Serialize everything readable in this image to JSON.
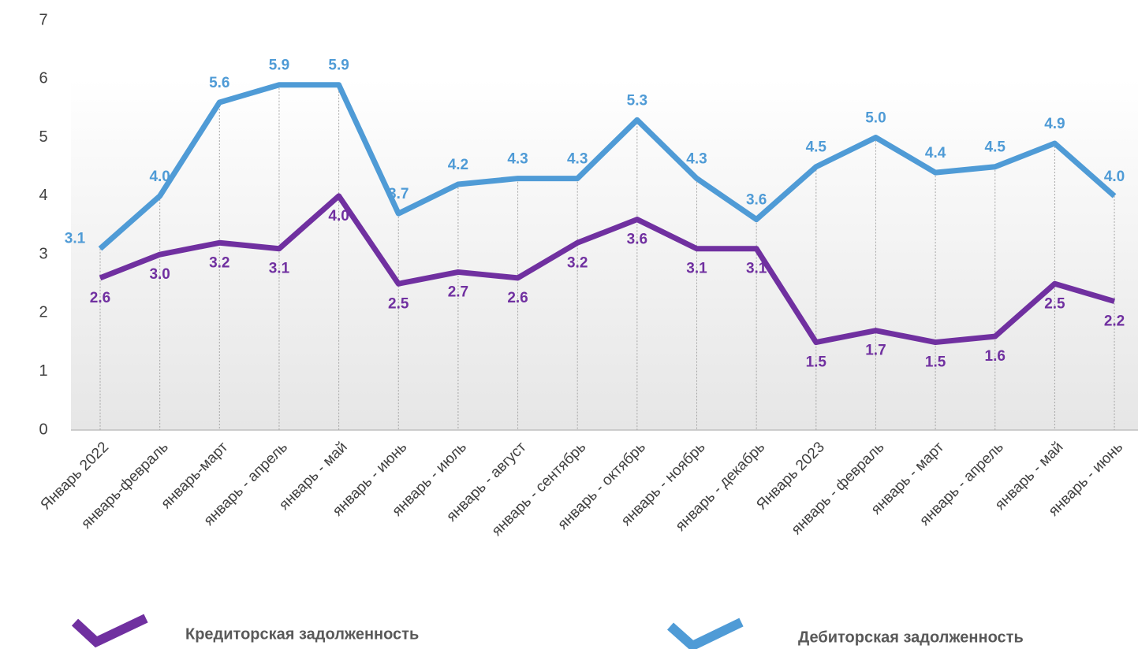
{
  "chart_data": {
    "type": "line",
    "categories": [
      "Январь 2022",
      "январь-февраль",
      "январь-март",
      "январь - апрель",
      "январь - май",
      "январь - июнь",
      "январь - июль",
      "январь - август",
      "январь - сентябрь",
      "январь - октябрь",
      "январь - ноябрь",
      "январь - декабрь",
      "Январь 2023",
      "январь - февраль",
      "январь - март",
      "январь - апрель",
      "январь - май",
      "январь - июнь"
    ],
    "series": [
      {
        "name": "Кредиторская задолженность",
        "color": "#7030a0",
        "values": [
          2.6,
          3.0,
          3.2,
          3.1,
          4.0,
          2.5,
          2.7,
          2.6,
          3.2,
          3.6,
          3.1,
          3.1,
          1.5,
          1.7,
          1.5,
          1.6,
          2.5,
          2.2
        ],
        "value_labels": [
          "2.6",
          "3.0",
          "3.2",
          "3.1",
          "4.0",
          "2.5",
          "2.7",
          "2.6",
          "3.2",
          "3.6",
          "3.1",
          "3.1",
          "1.5",
          "1.7",
          "1.5",
          "1.6",
          "2.5",
          "2.2"
        ]
      },
      {
        "name": "Дебиторская задолженность",
        "color": "#4f9bd6",
        "values": [
          3.1,
          4.0,
          5.6,
          5.9,
          5.9,
          3.7,
          4.2,
          4.3,
          4.3,
          5.3,
          4.3,
          3.6,
          4.5,
          5.0,
          4.4,
          4.5,
          4.9,
          4.0
        ],
        "value_labels": [
          "3.1",
          "4.0",
          "5.6",
          "5.9",
          "5.9",
          "3.7",
          "4.2",
          "4.3",
          "4.3",
          "5.3",
          "4.3",
          "3.6",
          "4.5",
          "5.0",
          "4.4",
          "4.5",
          "4.9",
          "4.0"
        ]
      }
    ],
    "ylim": [
      0,
      7
    ],
    "yticks": [
      0,
      1,
      2,
      3,
      4,
      5,
      6,
      7
    ],
    "grid": false
  }
}
